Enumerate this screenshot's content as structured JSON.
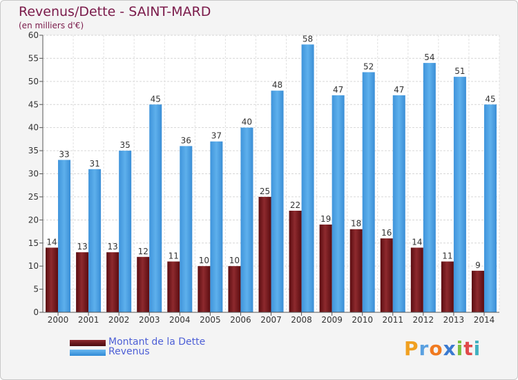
{
  "title": "Revenus/Dette - SAINT-MARD",
  "subtitle": "(en milliers d'€)",
  "brand": "Proxiti",
  "legend": {
    "debt_label": "Montant de la Dette",
    "revenue_label": "Revenus"
  },
  "colors": {
    "debt": "#7a1a1e",
    "revenue": "#4ea3e6",
    "title": "#7a1a4a",
    "legend_text": "#4d5fd6"
  },
  "chart_data": {
    "type": "bar",
    "categories": [
      "2000",
      "2001",
      "2002",
      "2003",
      "2004",
      "2005",
      "2006",
      "2007",
      "2008",
      "2009",
      "2010",
      "2011",
      "2012",
      "2013",
      "2014"
    ],
    "series": [
      {
        "name": "Montant de la Dette",
        "values": [
          14,
          13,
          13,
          12,
          11,
          10,
          10,
          25,
          22,
          19,
          18,
          16,
          14,
          11,
          9
        ]
      },
      {
        "name": "Revenus",
        "values": [
          33,
          31,
          35,
          45,
          36,
          37,
          40,
          48,
          58,
          47,
          52,
          47,
          54,
          51,
          45
        ]
      }
    ],
    "ylim": [
      0,
      60
    ],
    "yticks": [
      0,
      5,
      10,
      15,
      20,
      25,
      30,
      35,
      40,
      45,
      50,
      55,
      60
    ],
    "grid": true,
    "legend_position": "bottom-left"
  }
}
